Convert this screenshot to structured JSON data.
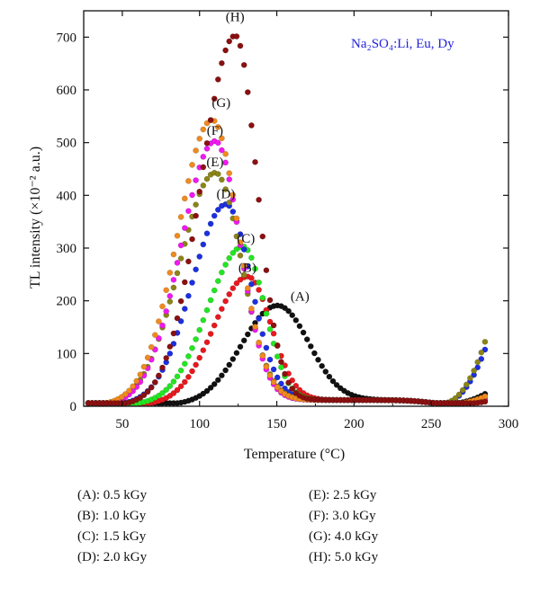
{
  "chart_data": {
    "type": "scatter",
    "xlabel": "Temperature (°C)",
    "ylabel": "TL intensity (×10⁻² a.u.)",
    "xlim": [
      25,
      300
    ],
    "ylim": [
      0,
      750
    ],
    "xticks": [
      50,
      100,
      150,
      200,
      250,
      300
    ],
    "yticks": [
      0,
      100,
      200,
      300,
      400,
      500,
      600,
      700
    ],
    "annotation": "Na₂SO₄:Li, Eu, Dy",
    "series": [
      {
        "name": "(A)",
        "dose": "0.5 kGy",
        "color": "#111111",
        "peak_x": 150,
        "peak_y": 188,
        "width_left": 23,
        "width_right": 20,
        "tail_end_x": 285,
        "tail_end_y": 30
      },
      {
        "name": "(B)",
        "dose": "1.0 kGy",
        "color": "#e8181e",
        "peak_x": 131,
        "peak_y": 243,
        "width_left": 22,
        "width_right": 15,
        "tail_end_x": 285,
        "tail_end_y": 15
      },
      {
        "name": "(C)",
        "dose": "1.5 kGy",
        "color": "#22e622",
        "peak_x": 128,
        "peak_y": 300,
        "width_left": 23,
        "width_right": 14,
        "tail_end_x": 285,
        "tail_end_y": 20
      },
      {
        "name": "(D)",
        "dose": "2.0 kGy",
        "color": "#1c2fe0",
        "peak_x": 117,
        "peak_y": 380,
        "width_left": 22,
        "width_right": 16,
        "tail_end_x": 285,
        "tail_end_y": 115
      },
      {
        "name": "(E)",
        "dose": "2.5 kGy",
        "color": "#8b8418",
        "peak_x": 110,
        "peak_y": 440,
        "width_left": 23,
        "width_right": 17,
        "tail_end_x": 285,
        "tail_end_y": 130
      },
      {
        "name": "(F)",
        "dose": "3.0 kGy",
        "color": "#f018f0",
        "peak_x": 110,
        "peak_y": 500,
        "width_left": 22,
        "width_right": 16,
        "tail_end_x": 285,
        "tail_end_y": 18
      },
      {
        "name": "(G)",
        "dose": "4.0 kGy",
        "color": "#f08a1e",
        "peak_x": 108,
        "peak_y": 540,
        "width_left": 22,
        "width_right": 17,
        "tail_end_x": 285,
        "tail_end_y": 25
      },
      {
        "name": "(H)",
        "dose": "5.0 kGy",
        "color": "#8b1010",
        "peak_x": 123,
        "peak_y": 700,
        "width_left": 22,
        "width_right": 14,
        "tail_end_x": 285,
        "tail_end_y": 15
      }
    ]
  },
  "legend": {
    "left": [
      {
        "label": "(A): 0.5 kGy"
      },
      {
        "label": "(B): 1.0 kGy"
      },
      {
        "label": "(C): 1.5 kGy"
      },
      {
        "label": "(D): 2.0 kGy"
      }
    ],
    "right": [
      {
        "label": "(E): 2.5 kGy"
      },
      {
        "label": "(F): 3.0 kGy"
      },
      {
        "label": "(G): 4.0 kGy"
      },
      {
        "label": "(H): 5.0 kGy"
      }
    ]
  }
}
